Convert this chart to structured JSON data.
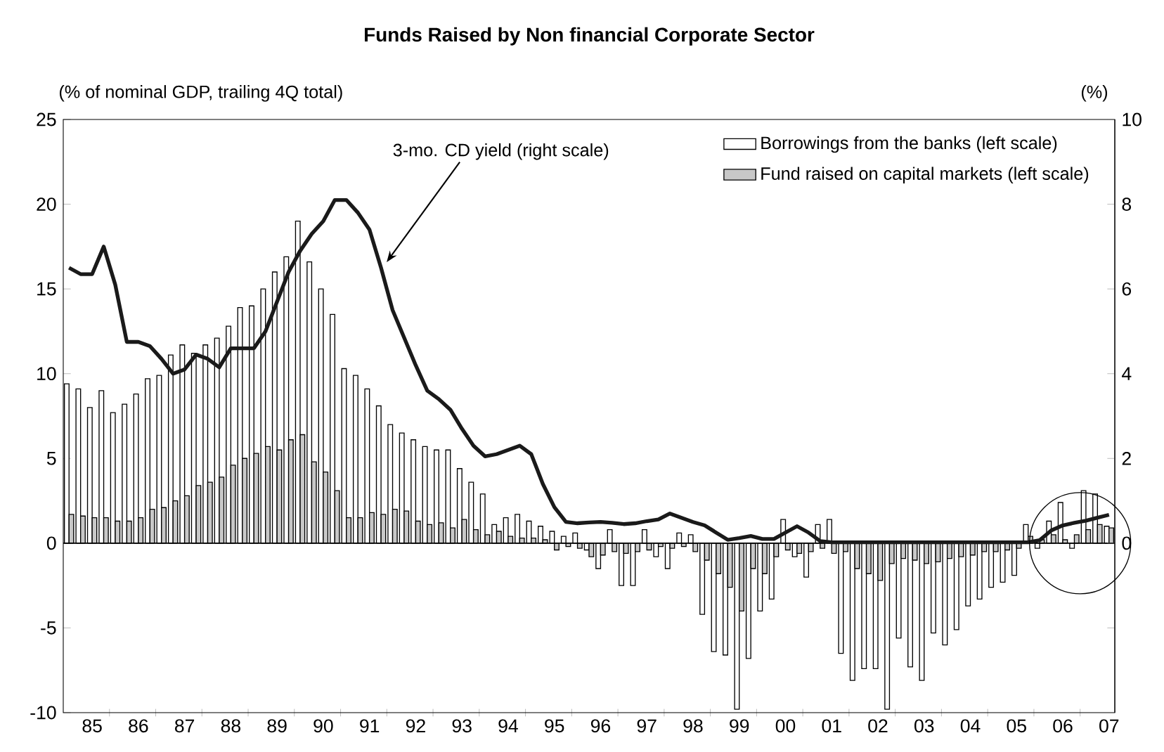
{
  "chart_data": {
    "type": "bar",
    "title": "Funds Raised by Non financial Corporate Sector",
    "ylabel": "(% of nominal GDP, trailing 4Q total)",
    "y2label": "(%)",
    "categories": [
      null,
      null,
      "85",
      null,
      null,
      null,
      "86",
      null,
      null,
      null,
      "87",
      null,
      null,
      null,
      "88",
      null,
      null,
      null,
      "89",
      null,
      null,
      null,
      "90",
      null,
      null,
      null,
      "91",
      null,
      null,
      null,
      "92",
      null,
      null,
      null,
      "93",
      null,
      null,
      null,
      "94",
      null,
      null,
      null,
      "95",
      null,
      null,
      null,
      "96",
      null,
      null,
      null,
      "97",
      null,
      null,
      null,
      "98",
      null,
      null,
      null,
      "99",
      null,
      null,
      null,
      "00",
      null,
      null,
      null,
      "01",
      null,
      null,
      null,
      "02",
      null,
      null,
      null,
      "03",
      null,
      null,
      null,
      "04",
      null,
      null,
      null,
      "05",
      null,
      null,
      null,
      "06",
      null,
      null,
      null,
      "07"
    ],
    "series": [
      {
        "name": "Borrowings from the banks (left scale)",
        "color": "#ffffff",
        "values": [
          9.4,
          9.1,
          8.0,
          9.0,
          7.7,
          8.2,
          8.8,
          9.7,
          9.9,
          11.1,
          11.7,
          11.2,
          11.7,
          12.1,
          12.8,
          13.9,
          14.0,
          15.0,
          16.0,
          16.9,
          19.0,
          16.6,
          15.0,
          13.5,
          10.3,
          9.9,
          9.1,
          8.1,
          7.0,
          6.5,
          6.1,
          5.7,
          5.5,
          5.5,
          4.4,
          3.6,
          2.9,
          1.1,
          1.5,
          1.7,
          1.3,
          1.0,
          0.7,
          0.4,
          0.6,
          -0.4,
          -1.5,
          0.8,
          -2.5,
          -2.5,
          0.8,
          -0.8,
          -1.5,
          0.6,
          0.5,
          -4.2,
          -6.4,
          -6.6,
          -9.8,
          -6.8,
          -4.0,
          -3.3,
          1.4,
          -0.8,
          -2.0,
          1.1,
          1.4,
          -6.5,
          -8.1,
          -7.4,
          -7.4,
          -9.8,
          -5.6,
          -7.3,
          -8.1,
          -5.3,
          -6.0,
          -5.1,
          -3.7,
          -3.3,
          -2.6,
          -2.3,
          -1.9,
          1.1,
          -0.3,
          1.3,
          2.4,
          -0.3,
          3.1,
          2.9,
          1.0
        ]
      },
      {
        "name": "Fund raised on capital markets (left scale)",
        "color": "#c8c8c8",
        "values": [
          1.7,
          1.6,
          1.5,
          1.5,
          1.3,
          1.3,
          1.5,
          2.0,
          2.1,
          2.5,
          2.8,
          3.4,
          3.6,
          3.9,
          4.6,
          5.0,
          5.3,
          5.7,
          5.5,
          6.1,
          6.4,
          4.8,
          4.2,
          3.1,
          1.5,
          1.5,
          1.8,
          1.7,
          2.0,
          1.9,
          1.3,
          1.1,
          1.2,
          0.9,
          1.4,
          0.8,
          0.5,
          0.7,
          0.4,
          0.3,
          0.3,
          0.2,
          -0.4,
          -0.2,
          -0.3,
          -0.8,
          -0.7,
          -0.5,
          -0.6,
          -0.5,
          -0.4,
          -0.2,
          -0.3,
          -0.2,
          -0.5,
          -1.0,
          -1.8,
          -2.6,
          -4.0,
          -1.5,
          -1.8,
          -0.8,
          -0.4,
          -0.6,
          -0.5,
          -0.3,
          -0.6,
          -0.5,
          -1.5,
          -1.8,
          -2.2,
          -1.2,
          -0.9,
          -1.0,
          -1.2,
          -1.1,
          -0.9,
          -0.8,
          -0.7,
          -0.5,
          -0.5,
          -0.4,
          -0.3,
          0.4,
          0.2,
          0.5,
          0.2,
          0.5,
          0.8,
          1.1,
          0.9
        ]
      },
      {
        "type": "line",
        "axis": "y2",
        "color": "#1a1a1a",
        "values": [
          6.5,
          6.35,
          6.35,
          7.0,
          6.1,
          4.75,
          4.75,
          4.65,
          4.35,
          4.0,
          4.1,
          4.45,
          4.35,
          4.15,
          4.6,
          4.6,
          4.6,
          5.0,
          5.7,
          6.4,
          6.9,
          7.3,
          7.6,
          8.1,
          8.1,
          7.8,
          7.4,
          6.5,
          5.5,
          4.85,
          4.2,
          3.6,
          3.4,
          3.15,
          2.7,
          2.3,
          2.05,
          2.1,
          2.2,
          2.3,
          2.1,
          1.4,
          0.85,
          0.5,
          0.47,
          0.49,
          0.5,
          0.48,
          0.45,
          0.47,
          0.52,
          0.56,
          0.7,
          0.6,
          0.5,
          0.42,
          0.25,
          0.08,
          0.12,
          0.17,
          0.1,
          0.1,
          0.25,
          0.4,
          0.25,
          0.05,
          0.02,
          0.02,
          0.02,
          0.02,
          0.02,
          0.02,
          0.02,
          0.02,
          0.02,
          0.02,
          0.02,
          0.02,
          0.02,
          0.02,
          0.02,
          0.02,
          0.02,
          0.02,
          0.07,
          0.3,
          0.42,
          0.48,
          0.53,
          0.6,
          0.67
        ]
      }
    ],
    "ylim": [
      -10,
      25
    ],
    "yticks": [
      -10,
      -5,
      0,
      5,
      10,
      15,
      20,
      25
    ],
    "y2lim": [
      -4,
      10
    ],
    "y2ticks": [
      {
        "value": -2,
        "label": null
      },
      0,
      2,
      4,
      6,
      8,
      10
    ],
    "legend": "top right",
    "annotations": [
      "3-mo. CD yield (right scale)"
    ]
  }
}
